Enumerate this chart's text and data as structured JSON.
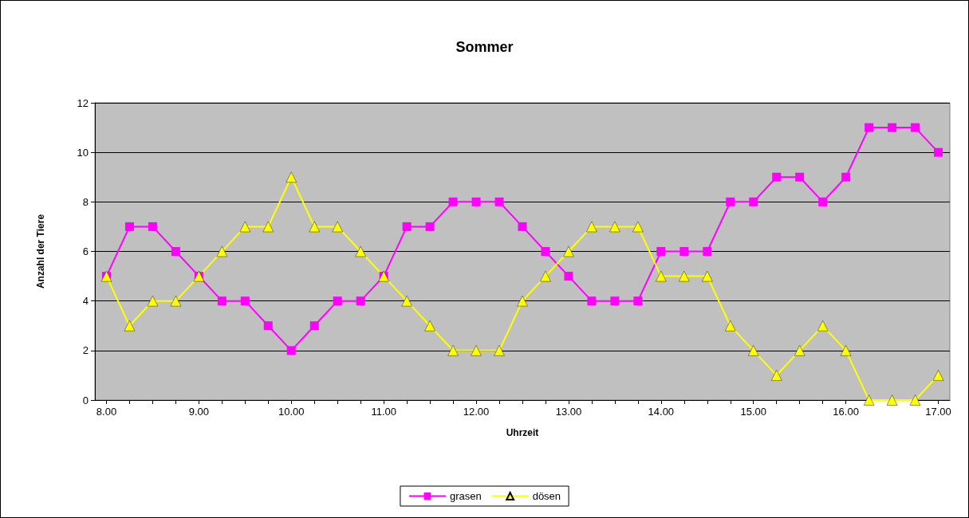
{
  "chart_data": {
    "type": "line",
    "title": "Sommer",
    "xlabel": "Uhrzeit",
    "ylabel": "Anzahl der Tiere",
    "categories": [
      "8.00",
      null,
      null,
      null,
      "9.00",
      null,
      null,
      null,
      "10.00",
      null,
      null,
      null,
      "11.00",
      null,
      null,
      null,
      "12.00",
      null,
      null,
      null,
      "13.00",
      null,
      null,
      null,
      "14.00",
      null,
      null,
      null,
      "15.00",
      null,
      null,
      null,
      "16.00",
      null,
      null,
      null,
      "17.00"
    ],
    "series": [
      {
        "name": "grasen",
        "color": "#ff00ff",
        "marker": "square",
        "values": [
          5,
          7,
          7,
          6,
          5,
          4,
          4,
          3,
          2,
          3,
          4,
          4,
          5,
          7,
          7,
          8,
          8,
          8,
          7,
          6,
          5,
          4,
          4,
          4,
          6,
          6,
          6,
          8,
          8,
          9,
          9,
          8,
          9,
          11,
          11,
          11,
          10
        ]
      },
      {
        "name": "dösen",
        "color": "#ffff00",
        "marker": "triangle",
        "values": [
          5,
          3,
          4,
          4,
          5,
          6,
          7,
          7,
          9,
          7,
          7,
          6,
          5,
          4,
          3,
          2,
          2,
          2,
          4,
          5,
          6,
          7,
          7,
          7,
          5,
          5,
          5,
          3,
          2,
          1,
          2,
          3,
          2,
          0,
          0,
          0,
          1
        ]
      }
    ],
    "ylim": [
      0,
      12
    ],
    "yticks": [
      0,
      2,
      4,
      6,
      8,
      10,
      12
    ],
    "grid": "y",
    "legend": "bottom",
    "line_style": "solid"
  }
}
